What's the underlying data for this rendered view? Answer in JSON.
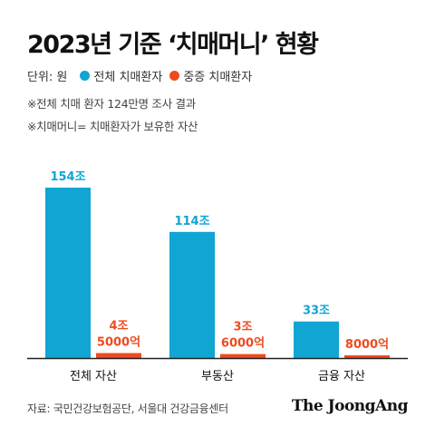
{
  "title": "2023년 기준 ‘치매머니’ 현황",
  "unit_label": "단위: 원",
  "notes": [
    "※전체 치매 환자 124만명 조사 결과",
    "※치매머니= 치매환자가 보유한 자산"
  ],
  "source": "자료: 국민건강보험공단, 서울대 건강금융센터",
  "brand": "The JoongAng",
  "colors": {
    "all": "#10a5d3",
    "severe": "#f04a1c",
    "axis": "#222222"
  },
  "chart_data": {
    "type": "bar",
    "categories": [
      "전체 자산",
      "부동산",
      "금융 자산"
    ],
    "unit": "조 원",
    "series": [
      {
        "name": "전체 치매환자",
        "values": [
          154,
          114,
          33
        ],
        "labels": [
          "154조",
          "114조",
          "33조"
        ]
      },
      {
        "name": "중증 치매환자",
        "values": [
          4.5,
          3.6,
          0.8
        ],
        "labels": [
          [
            "4조",
            "5000억"
          ],
          [
            "3조",
            "6000억"
          ],
          [
            "8000억"
          ]
        ]
      }
    ],
    "ylim": [
      0,
      165
    ],
    "legend": "top-left"
  }
}
